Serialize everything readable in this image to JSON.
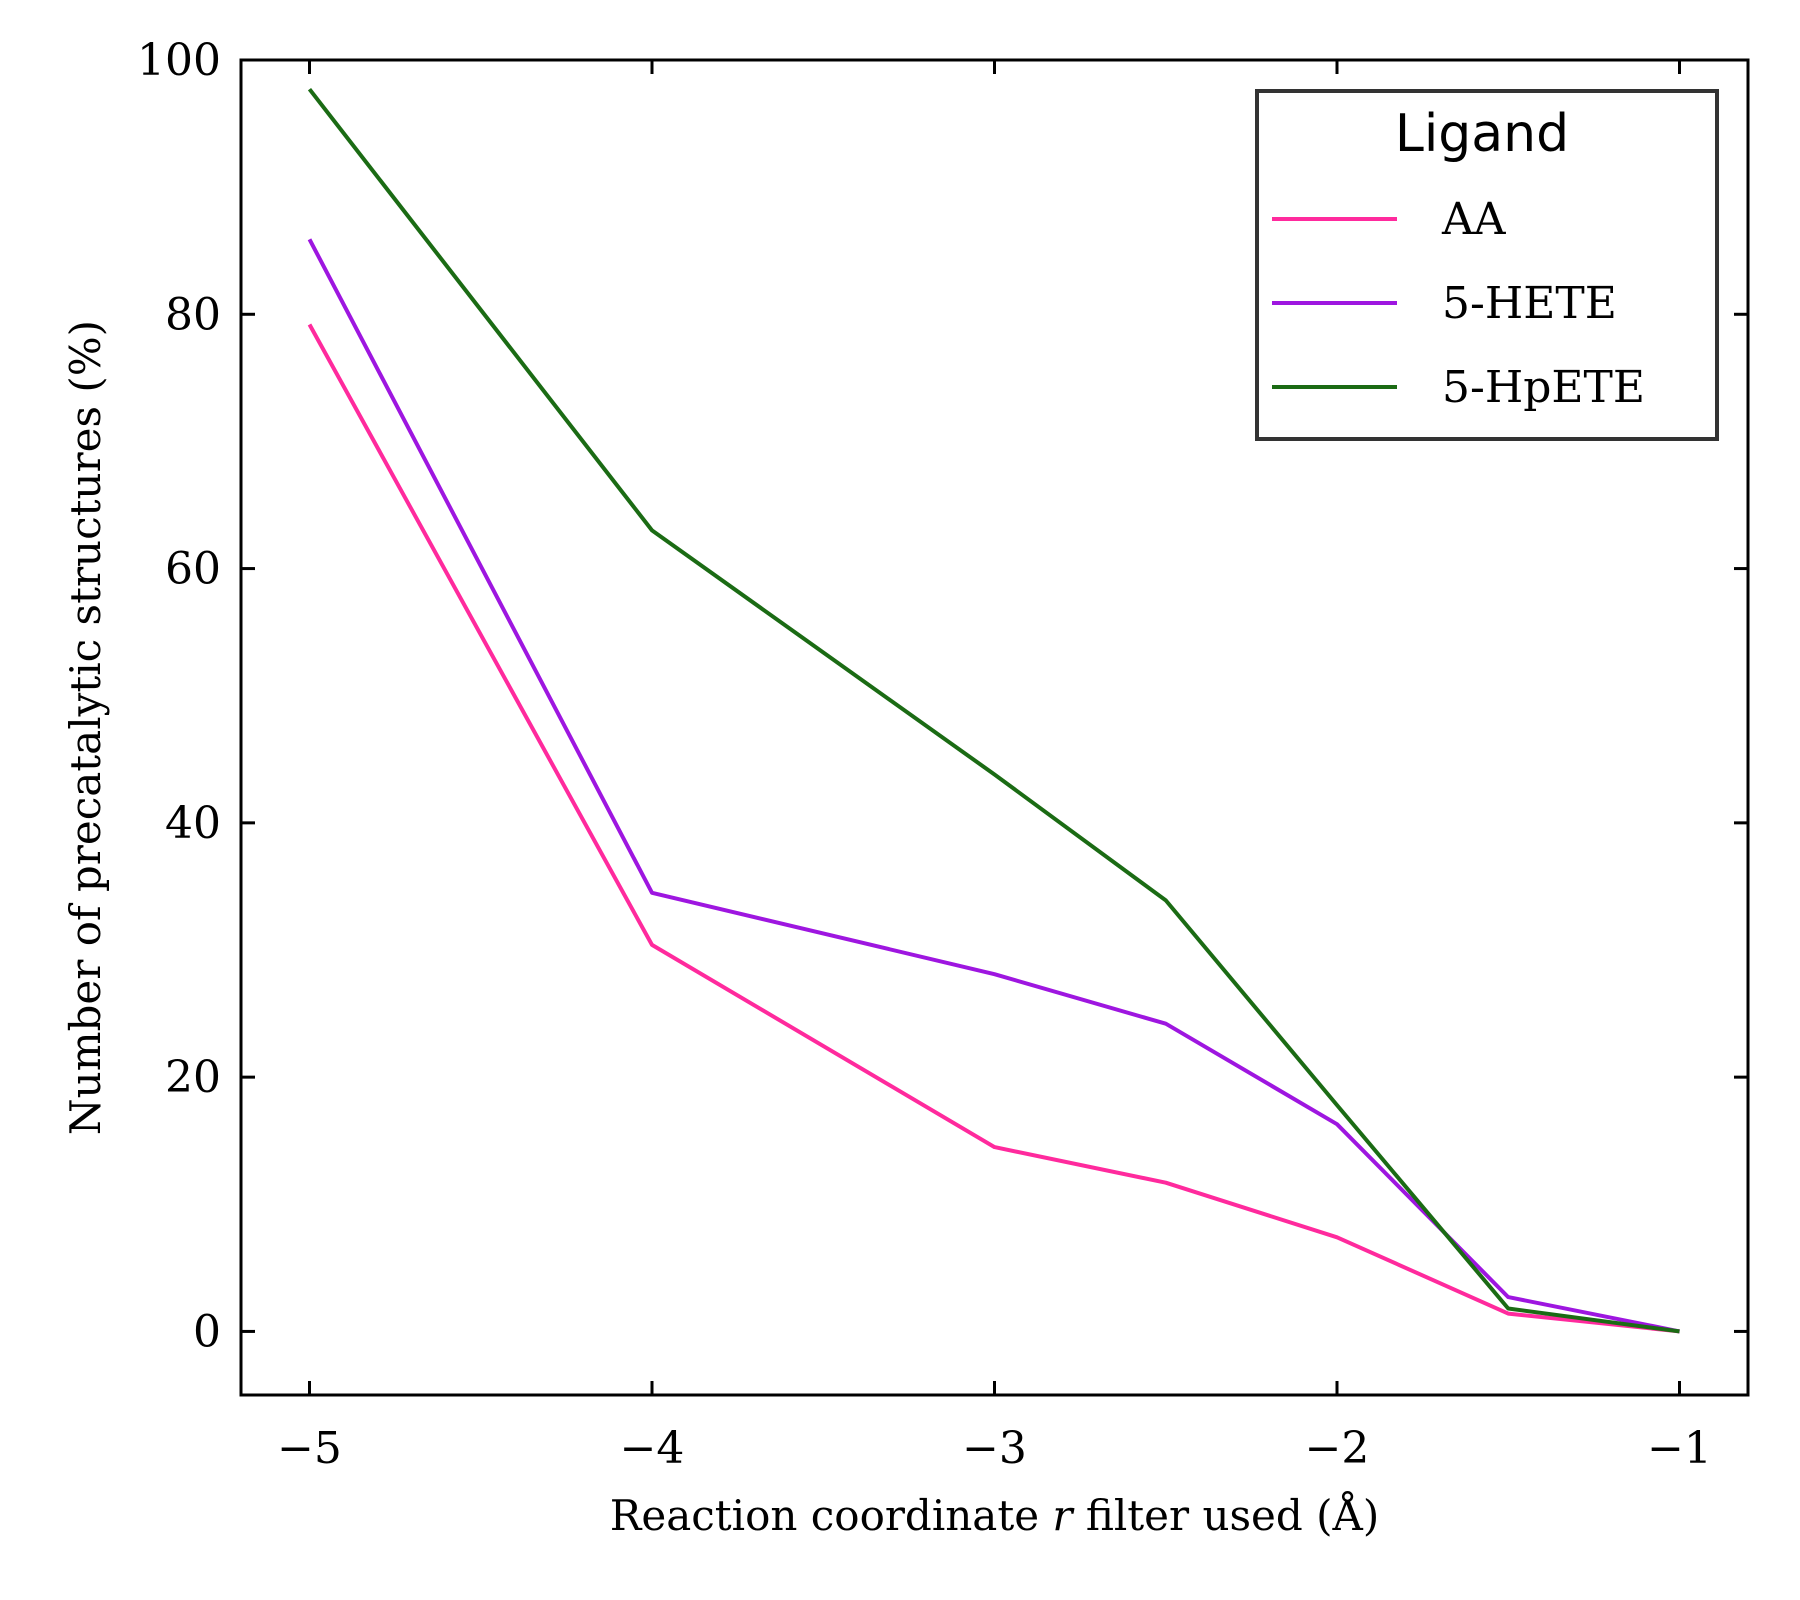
{
  "chart_data": {
    "type": "line",
    "title": "",
    "xlabel": "Reaction coordinate r filter used (Å)",
    "xlabel_parts": {
      "before": "Reaction coordinate ",
      "var": "r",
      "after": " filter used (Å)"
    },
    "ylabel": "Number of precatalytic structures (%)",
    "xlim": [
      -5.2,
      -0.8
    ],
    "ylim": [
      -5,
      100
    ],
    "xticks": [
      -5,
      -4,
      -3,
      -2,
      -1
    ],
    "xtick_labels": [
      "−5",
      "−4",
      "−3",
      "−2",
      "−1"
    ],
    "yticks": [
      0,
      20,
      40,
      60,
      80,
      100
    ],
    "ytick_labels": [
      "0",
      "20",
      "40",
      "60",
      "80",
      "100"
    ],
    "grid": false,
    "legend": {
      "title": "Ligand",
      "position": "top-right"
    },
    "series": [
      {
        "name": "AA",
        "color": "#ff2a9d",
        "x": [
          -5,
          -4,
          -3,
          -2.5,
          -2,
          -1.5,
          -1
        ],
        "y": [
          79.2,
          30.4,
          14.5,
          11.7,
          7.4,
          1.4,
          0
        ]
      },
      {
        "name": "5-HETE",
        "color": "#9e16e0",
        "x": [
          -5,
          -4,
          -3,
          -2.5,
          -2,
          -1.5,
          -1
        ],
        "y": [
          85.9,
          34.5,
          28.1,
          24.2,
          16.3,
          2.7,
          0
        ]
      },
      {
        "name": "5-HpETE",
        "color": "#1b6b14",
        "x": [
          -5,
          -4,
          -3,
          -2.5,
          -2,
          -1.5,
          -1
        ],
        "y": [
          97.7,
          63.0,
          43.8,
          33.9,
          17.8,
          1.8,
          0
        ]
      }
    ]
  }
}
